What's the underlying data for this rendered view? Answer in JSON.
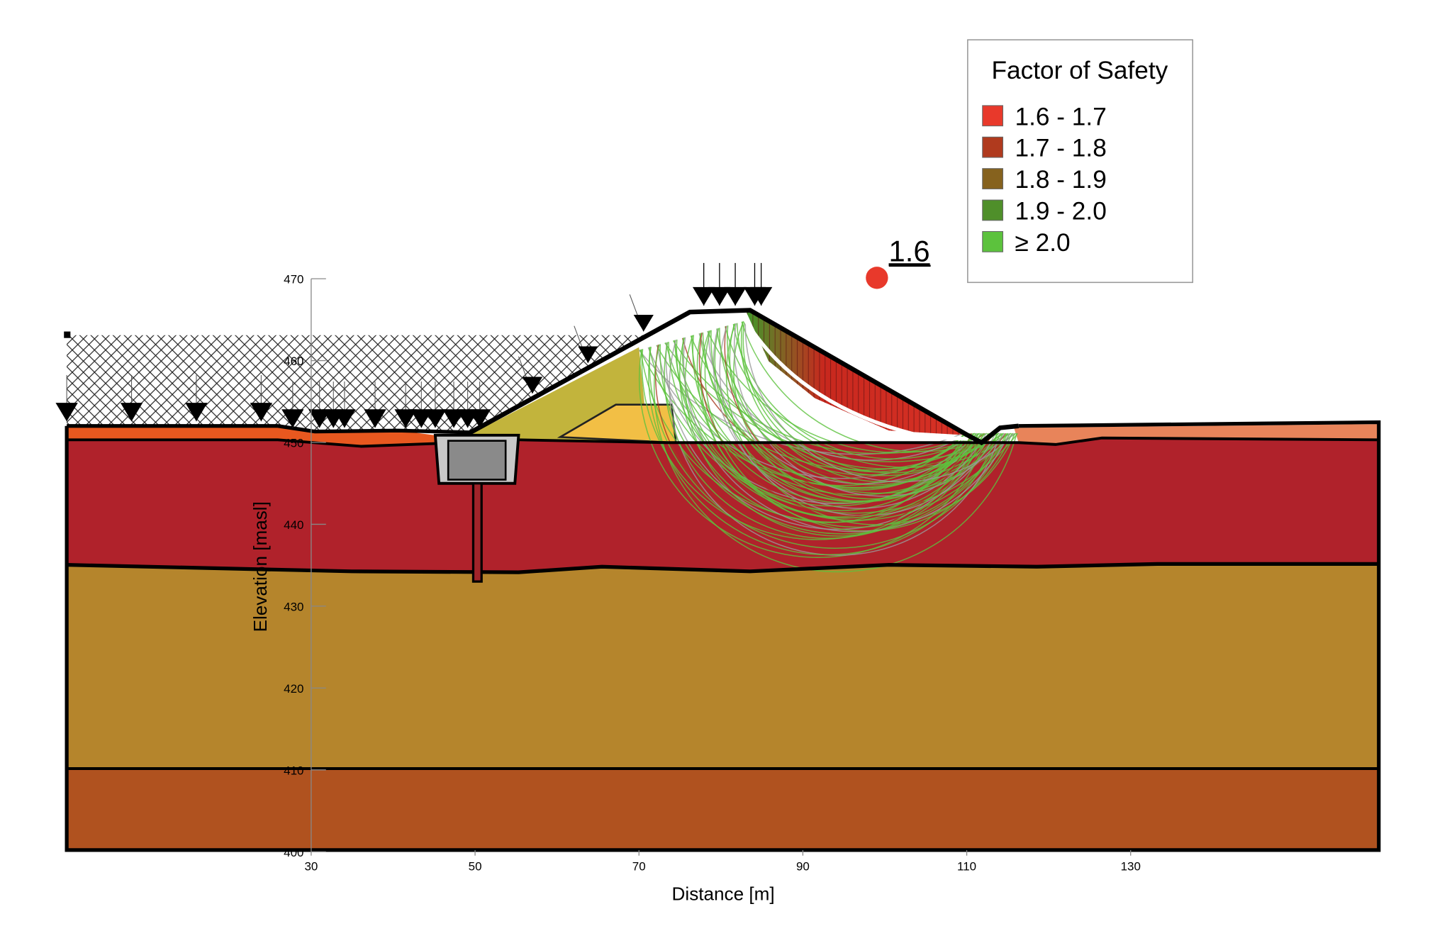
{
  "legend": {
    "title": "Factor of Safety",
    "items": [
      {
        "label": "1.6 - 1.7",
        "color": "#e8392b"
      },
      {
        "label": "1.7 - 1.8",
        "color": "#b03a1e"
      },
      {
        "label": "1.8 - 1.9",
        "color": "#86621e"
      },
      {
        "label": "1.9 - 2.0",
        "color": "#4f8f2a"
      },
      {
        "label": "≥ 2.0",
        "color": "#5cc23d"
      }
    ]
  },
  "critical_fos": {
    "label": "1.6"
  },
  "axes": {
    "x_label": "Distance [m]",
    "y_label": "Elevation [masl]",
    "xticks": [
      30,
      50,
      70,
      90,
      110,
      130
    ],
    "yticks": [
      470,
      460,
      450,
      440,
      430,
      420,
      410,
      400
    ]
  }
}
